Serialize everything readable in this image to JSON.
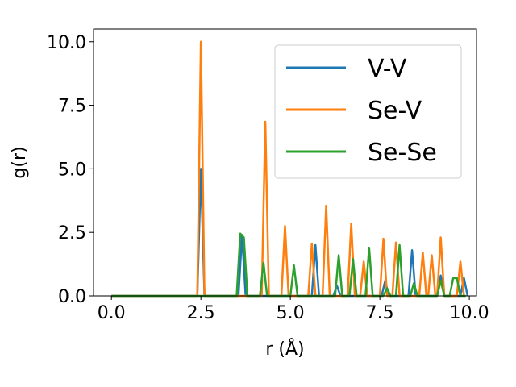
{
  "chart_data": {
    "type": "line",
    "title": "",
    "xlabel": "r (Å)",
    "ylabel": "g(r)",
    "xlim": [
      -0.5,
      10.2
    ],
    "ylim": [
      0,
      10.5
    ],
    "xticks": [
      "0.0",
      "2.5",
      "5.0",
      "7.5",
      "10.0"
    ],
    "yticks": [
      "0.0",
      "2.5",
      "5.0",
      "7.5",
      "10.0"
    ],
    "grid": false,
    "legend_position": "top-right",
    "series": [
      {
        "name": "V-V",
        "color": "#1f77b4",
        "points": [
          [
            0,
            0
          ],
          [
            2.4,
            0
          ],
          [
            2.5,
            5.0
          ],
          [
            2.6,
            0
          ],
          [
            3.55,
            0
          ],
          [
            3.65,
            2.4
          ],
          [
            3.75,
            0
          ],
          [
            5.6,
            0
          ],
          [
            5.7,
            2.0
          ],
          [
            5.8,
            0
          ],
          [
            6.2,
            0
          ],
          [
            6.3,
            0.4
          ],
          [
            6.4,
            0
          ],
          [
            7.55,
            0
          ],
          [
            7.65,
            0.6
          ],
          [
            7.75,
            0
          ],
          [
            8.3,
            0
          ],
          [
            8.4,
            1.8
          ],
          [
            8.5,
            0
          ],
          [
            9.1,
            0
          ],
          [
            9.2,
            0.8
          ],
          [
            9.3,
            0
          ],
          [
            9.75,
            0
          ],
          [
            9.85,
            0.7
          ],
          [
            9.95,
            0
          ]
        ]
      },
      {
        "name": "Se-V",
        "color": "#ff7f0e",
        "points": [
          [
            0,
            0
          ],
          [
            2.4,
            0
          ],
          [
            2.5,
            10.0
          ],
          [
            2.6,
            0
          ],
          [
            4.2,
            0
          ],
          [
            4.3,
            6.85
          ],
          [
            4.4,
            0
          ],
          [
            4.75,
            0
          ],
          [
            4.85,
            2.75
          ],
          [
            4.95,
            0
          ],
          [
            5.5,
            0
          ],
          [
            5.6,
            2.05
          ],
          [
            5.7,
            0
          ],
          [
            5.9,
            0
          ],
          [
            6.0,
            3.55
          ],
          [
            6.1,
            0
          ],
          [
            6.6,
            0
          ],
          [
            6.7,
            2.85
          ],
          [
            6.8,
            0
          ],
          [
            6.95,
            0
          ],
          [
            7.05,
            1.35
          ],
          [
            7.15,
            0
          ],
          [
            7.5,
            0
          ],
          [
            7.6,
            2.25
          ],
          [
            7.7,
            0
          ],
          [
            7.85,
            0
          ],
          [
            7.95,
            2.1
          ],
          [
            8.05,
            0
          ],
          [
            8.6,
            0
          ],
          [
            8.7,
            1.7
          ],
          [
            8.8,
            0
          ],
          [
            8.85,
            0
          ],
          [
            8.95,
            1.6
          ],
          [
            9.05,
            0
          ],
          [
            9.1,
            0
          ],
          [
            9.2,
            2.3
          ],
          [
            9.3,
            0
          ],
          [
            9.65,
            0
          ],
          [
            9.75,
            1.35
          ],
          [
            9.85,
            0
          ]
        ]
      },
      {
        "name": "Se-Se",
        "color": "#2ca02c",
        "points": [
          [
            0,
            0
          ],
          [
            3.5,
            0
          ],
          [
            3.6,
            2.45
          ],
          [
            3.7,
            2.3
          ],
          [
            3.8,
            0
          ],
          [
            4.15,
            0
          ],
          [
            4.25,
            1.3
          ],
          [
            4.35,
            0
          ],
          [
            5.0,
            0
          ],
          [
            5.1,
            1.2
          ],
          [
            5.2,
            0
          ],
          [
            6.25,
            0
          ],
          [
            6.35,
            1.6
          ],
          [
            6.45,
            0
          ],
          [
            6.65,
            0
          ],
          [
            6.75,
            1.45
          ],
          [
            6.85,
            0
          ],
          [
            7.1,
            0
          ],
          [
            7.2,
            1.9
          ],
          [
            7.3,
            0
          ],
          [
            7.6,
            0
          ],
          [
            7.7,
            0.3
          ],
          [
            7.8,
            0
          ],
          [
            7.95,
            0
          ],
          [
            8.05,
            2.0
          ],
          [
            8.15,
            0
          ],
          [
            8.35,
            0
          ],
          [
            8.45,
            0.5
          ],
          [
            8.55,
            0
          ],
          [
            9.1,
            0
          ],
          [
            9.2,
            0.6
          ],
          [
            9.3,
            0
          ],
          [
            9.45,
            0
          ],
          [
            9.55,
            0.7
          ],
          [
            9.65,
            0.7
          ],
          [
            9.75,
            0
          ],
          [
            9.9,
            0
          ]
        ]
      }
    ]
  }
}
